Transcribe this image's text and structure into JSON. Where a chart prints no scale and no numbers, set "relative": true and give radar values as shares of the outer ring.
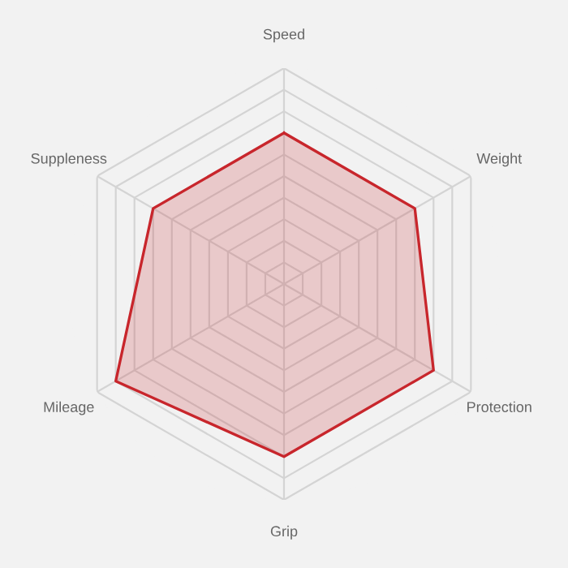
{
  "chart_data": {
    "type": "radar",
    "relative": true,
    "grid": true,
    "categories": [
      "Speed",
      "Weight",
      "Protection",
      "Grip",
      "Mileage",
      "Suppleness"
    ],
    "series": [
      {
        "color": "#c8262c",
        "values": [
          0.7,
          0.7,
          0.8,
          0.8,
          0.9,
          0.7
        ]
      }
    ]
  }
}
